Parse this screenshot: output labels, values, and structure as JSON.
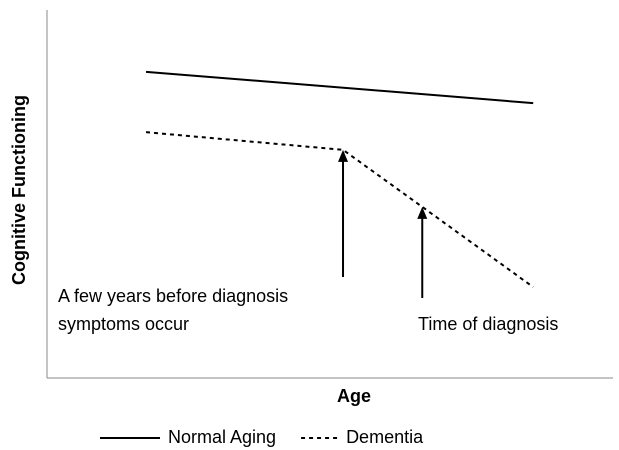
{
  "chart_data": {
    "type": "line",
    "xlabel": "Age",
    "ylabel": "Cognitive Functioning",
    "xlim": [
      0,
      100
    ],
    "ylim": [
      0,
      100
    ],
    "series": [
      {
        "name": "Normal Aging",
        "color": "#000000",
        "style": "solid",
        "x": [
          17.5,
          85.9
        ],
        "values": [
          83.2,
          74.7
        ]
      },
      {
        "name": "Dementia",
        "color": "#000000",
        "style": "dotted",
        "x": [
          17.5,
          52.3,
          66.3,
          85.9
        ],
        "values": [
          66.8,
          62.0,
          46.5,
          24.7
        ]
      }
    ],
    "annotations": [
      {
        "text": [
          "A few years before diagnosis",
          "symptoms occur"
        ],
        "x": 52.3,
        "y": 62.0
      },
      {
        "text": [
          "Time of diagnosis"
        ],
        "x": 66.3,
        "y": 46.5
      }
    ],
    "legend": "bottom"
  }
}
